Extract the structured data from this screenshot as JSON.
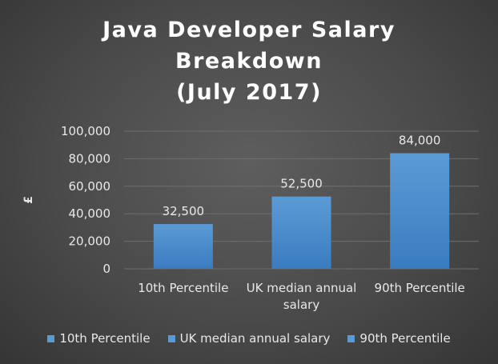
{
  "chart_data": {
    "type": "bar",
    "title_lines": [
      "Java Developer Salary",
      "Breakdown",
      "(July 2017)"
    ],
    "categories": [
      "10th Percentile",
      "UK median annual salary",
      "90th Percentile"
    ],
    "category_label_lines": [
      [
        "10th Percentile"
      ],
      [
        "UK median annual",
        "salary"
      ],
      [
        "90th Percentile"
      ]
    ],
    "values": [
      32500,
      52500,
      84000
    ],
    "data_labels": [
      "32,500",
      "52,500",
      "84,000"
    ],
    "ylabel": "£",
    "xlabel": "",
    "ylim": [
      0,
      100000
    ],
    "y_ticks": [
      0,
      20000,
      40000,
      60000,
      80000,
      100000
    ],
    "y_tick_labels": [
      "0",
      "20,000",
      "40,000",
      "60,000",
      "80,000",
      "100,000"
    ],
    "grid": true,
    "legend": {
      "position": "bottom",
      "entries": [
        "10th Percentile",
        "UK median annual salary",
        "90th Percentile"
      ]
    },
    "colors": {
      "bar_top": "#5b9bd5",
      "bar_bottom": "#3a7cc0",
      "gridline": "#6e6e6e",
      "text": "#e8e8e8"
    }
  }
}
